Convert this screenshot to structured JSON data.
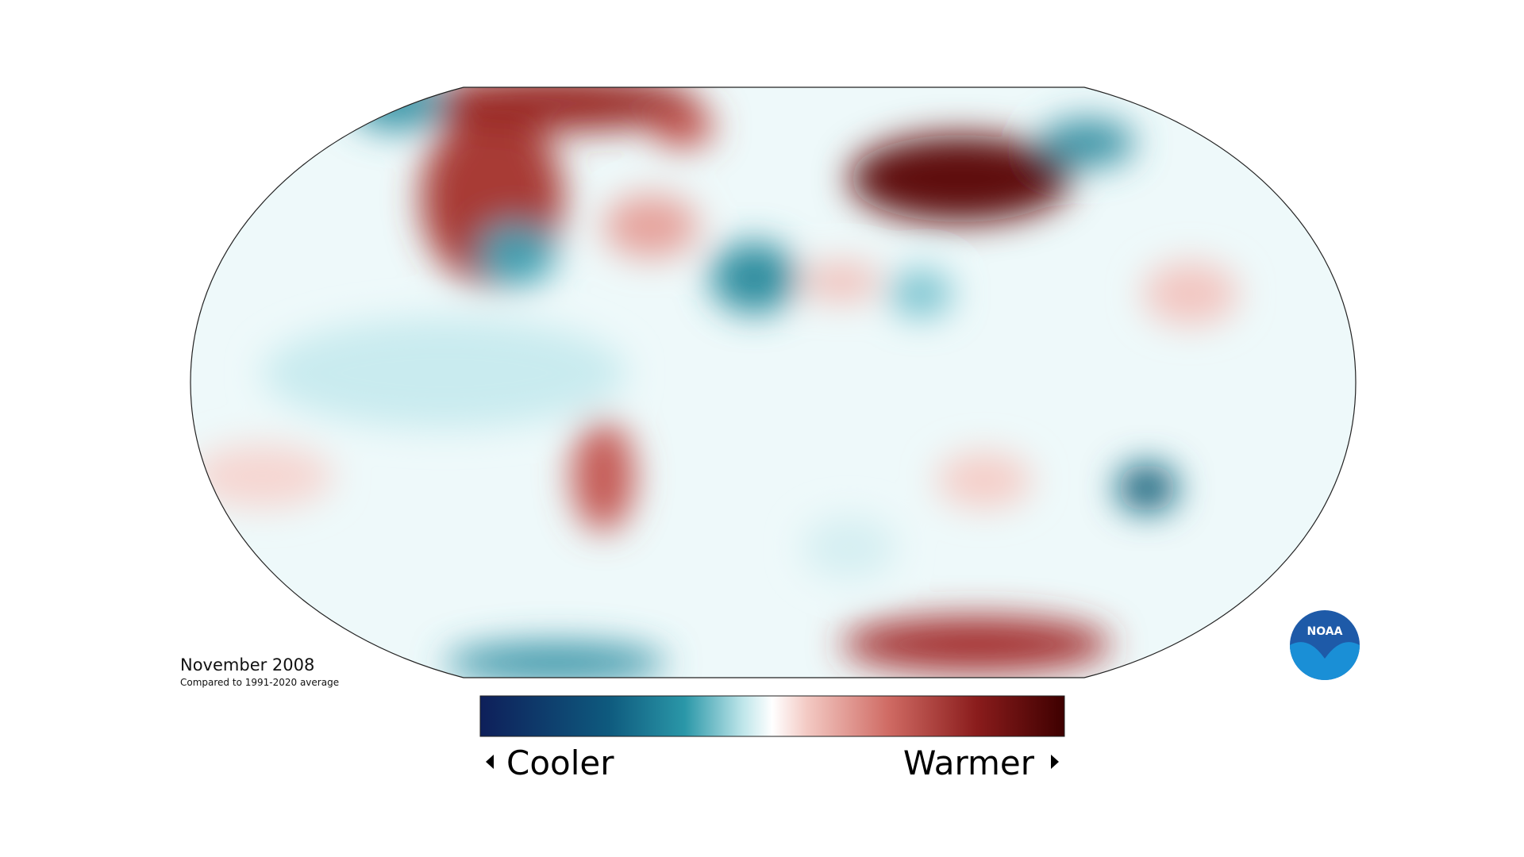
{
  "map": {
    "title": "November 2008",
    "subtitle": "Compared to 1991-2020 average"
  },
  "legend": {
    "low_label": "Cooler",
    "high_label": "Warmer"
  },
  "logo": {
    "text": "NOAA"
  }
}
